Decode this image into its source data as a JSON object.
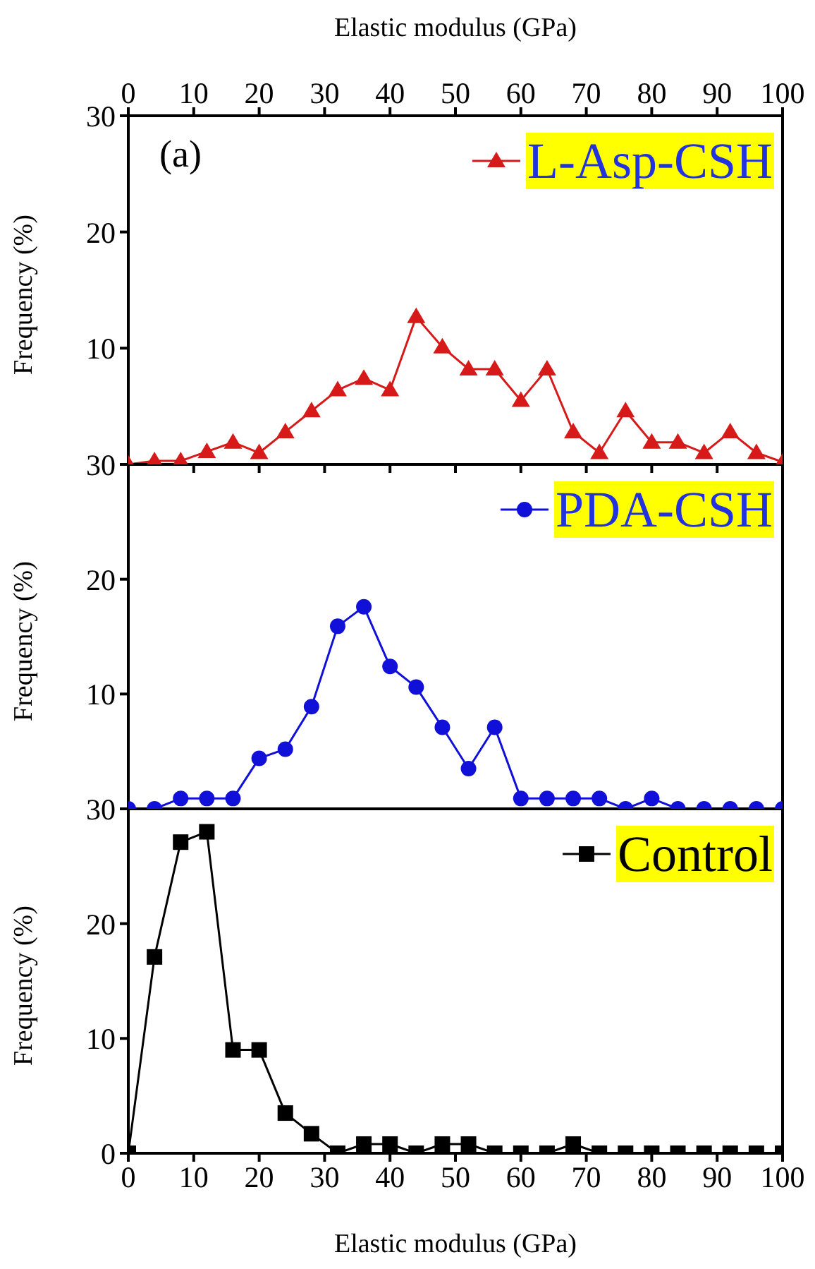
{
  "chart_data": [
    {
      "type": "line",
      "annotations": [
        "(a)"
      ],
      "x2label": "Elastic modulus (GPa)",
      "xlim": [
        0,
        100
      ],
      "x2lim": [
        0,
        100
      ],
      "x2ticks": [
        0,
        10,
        20,
        30,
        40,
        50,
        60,
        70,
        80,
        90,
        100
      ],
      "ylabel": "Frequency (%)",
      "ylim": [
        0,
        30
      ],
      "yticks": [
        {
          "value": 0,
          "label": null
        },
        10,
        20,
        30
      ],
      "tick_labels": "y",
      "legend": "top right",
      "marker": "triangle",
      "x": [
        0,
        4,
        8,
        12,
        16,
        20,
        24,
        28,
        32,
        36,
        40,
        44,
        48,
        52,
        56,
        60,
        64,
        68,
        72,
        76,
        80,
        84,
        88,
        92,
        96,
        100
      ],
      "series": [
        {
          "name": "L-Asp-CSH",
          "color": "#d61a1a",
          "values": [
            0,
            0.3,
            0.3,
            1.1,
            1.9,
            1.0,
            2.8,
            4.6,
            6.4,
            7.4,
            6.4,
            12.7,
            10.1,
            8.2,
            8.2,
            5.5,
            8.2,
            2.8,
            1.0,
            4.6,
            1.9,
            1.9,
            1.0,
            2.8,
            1.0,
            0.2
          ]
        }
      ]
    },
    {
      "type": "line",
      "xlim": [
        0,
        100
      ],
      "ylabel": "Frequency (%)",
      "ylim": [
        0,
        30
      ],
      "yticks": [
        {
          "value": 0,
          "label": null
        },
        10,
        20,
        30
      ],
      "tick_labels": "y",
      "legend": "top right",
      "marker": "circle",
      "x": [
        0,
        4,
        8,
        12,
        16,
        20,
        24,
        28,
        32,
        36,
        40,
        44,
        48,
        52,
        56,
        60,
        64,
        68,
        72,
        76,
        80,
        84,
        88,
        92,
        96,
        100
      ],
      "series": [
        {
          "name": "PDA-CSH",
          "color": "#1010d8",
          "values": [
            0,
            0,
            0.9,
            0.9,
            0.9,
            4.4,
            5.2,
            8.9,
            15.9,
            17.6,
            12.4,
            10.6,
            7.1,
            3.5,
            7.1,
            0.9,
            0.9,
            0.9,
            0.9,
            0,
            0.9,
            0,
            0,
            0,
            0,
            0
          ]
        }
      ]
    },
    {
      "type": "line",
      "xlabel": "Elastic modulus (GPa)",
      "xlim": [
        0,
        100
      ],
      "xticks": [
        0,
        10,
        20,
        30,
        40,
        50,
        60,
        70,
        80,
        90,
        100
      ],
      "ylabel": "Frequency (%)",
      "ylim": [
        0,
        30
      ],
      "yticks": [
        0,
        10,
        20,
        30
      ],
      "legend": "top right",
      "marker": "square",
      "x": [
        0,
        4,
        8,
        12,
        16,
        20,
        24,
        28,
        32,
        36,
        40,
        44,
        48,
        52,
        56,
        60,
        64,
        68,
        72,
        76,
        80,
        84,
        88,
        92,
        96,
        100
      ],
      "series": [
        {
          "name": "Control",
          "color": "#000000",
          "values": [
            0,
            17.1,
            27.1,
            28.0,
            9.0,
            9.0,
            3.5,
            1.7,
            0,
            0.8,
            0.8,
            0,
            0.8,
            0.8,
            0,
            0,
            0,
            0.8,
            0,
            0,
            0,
            0,
            0,
            0,
            0,
            0
          ]
        }
      ]
    }
  ]
}
